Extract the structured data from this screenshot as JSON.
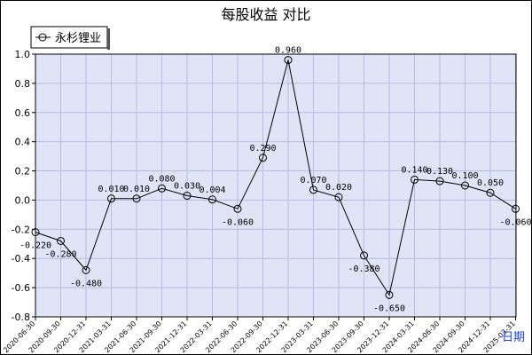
{
  "chart_data": {
    "type": "line",
    "title": "每股收益  对比",
    "legend": {
      "position": "top-left"
    },
    "xlabel": "日期",
    "ylabel": "",
    "ylim": [
      -0.8,
      1.0
    ],
    "yticks": [
      "1.0",
      "0.8",
      "0.6",
      "0.4",
      "0.2",
      "0.0",
      "-0.2",
      "-0.4",
      "-0.6",
      "-0.8"
    ],
    "grid": true,
    "categories": [
      "2020-06-30",
      "2020-09-30",
      "2020-12-31",
      "2021-03-31",
      "2021-06-30",
      "2021-09-30",
      "2021-12-31",
      "2022-03-31",
      "2022-06-30",
      "2022-09-30",
      "2022-12-31",
      "2023-03-31",
      "2023-06-30",
      "2023-09-30",
      "2023-12-31",
      "2024-03-31",
      "2024-06-30",
      "2024-09-30",
      "2024-12-31",
      "2025-03-31"
    ],
    "series": [
      {
        "name": "永杉锂业",
        "color": "#000000",
        "values": [
          -0.22,
          -0.28,
          -0.48,
          0.01,
          0.01,
          0.08,
          0.03,
          0.004,
          -0.06,
          0.29,
          0.96,
          0.07,
          0.02,
          -0.38,
          -0.65,
          0.14,
          0.13,
          0.1,
          0.05,
          -0.06
        ],
        "labels": [
          "-0.220",
          "-0.280",
          "-0.480",
          "0.010",
          "0.010",
          "0.080",
          "0.030",
          "0.004",
          "-0.060",
          "0.290",
          "0.960",
          "0.070",
          "0.020",
          "-0.380",
          "-0.650",
          "0.140",
          "0.130",
          "0.100",
          "0.050",
          "-0.060"
        ]
      }
    ],
    "colors": {
      "plot_bg": "#dfe4f7",
      "grid": "#b4bce0",
      "line": "#000000"
    }
  }
}
